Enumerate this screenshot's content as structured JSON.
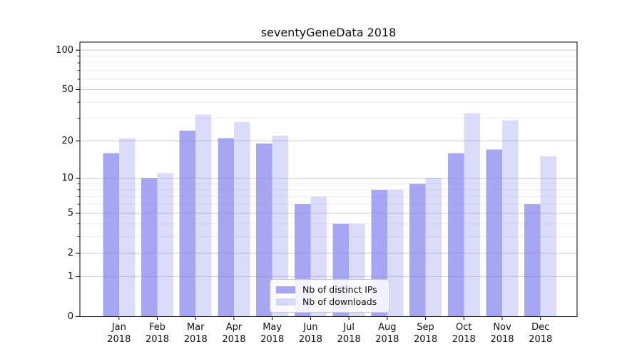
{
  "chart_data": {
    "type": "bar",
    "title": "seventyGeneData 2018",
    "categories": [
      "Jan",
      "Feb",
      "Mar",
      "Apr",
      "May",
      "Jun",
      "Jul",
      "Aug",
      "Sep",
      "Oct",
      "Nov",
      "Dec"
    ],
    "year_label": "2018",
    "series": [
      {
        "name": "Nb of distinct IPs",
        "color": "#8888ee",
        "opacity": 0.75,
        "values": [
          16,
          10,
          24,
          21,
          19,
          6,
          4,
          8,
          9,
          16,
          17,
          6
        ]
      },
      {
        "name": "Nb of downloads",
        "color": "#8888ee",
        "opacity": 0.3,
        "values": [
          21,
          11,
          32,
          28,
          22,
          7,
          4,
          8,
          10,
          33,
          29,
          15
        ]
      }
    ],
    "xlabel": "",
    "ylabel": "",
    "yscale": "symlog (log1p)",
    "ylim": [
      0,
      115
    ],
    "yticks": [
      0,
      1,
      2,
      5,
      10,
      20,
      50,
      100
    ],
    "yticks_minor": [
      3,
      4,
      6,
      7,
      8,
      9,
      30,
      40,
      60,
      70,
      80,
      90
    ],
    "grid": true,
    "legend_position": "lower center",
    "colors": {
      "axis": "#000000",
      "grid_major": "#c9c9c9",
      "grid_minor": "#ececec",
      "text": "#111111",
      "background": "#ffffff",
      "legend_border": "#cccccc"
    }
  }
}
